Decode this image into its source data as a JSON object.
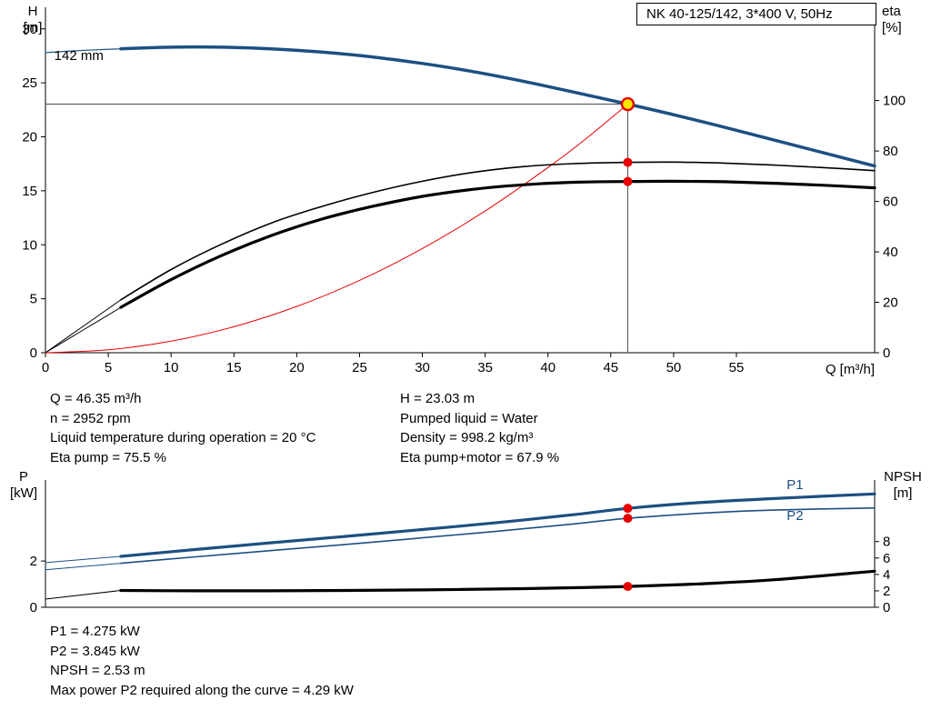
{
  "title_box": {
    "label": "NK 40-125/142, 3*400 V, 50Hz"
  },
  "colors": {
    "blue": "#1c4f82",
    "red": "#e60000",
    "yellow": "#ffe600",
    "black": "#000000",
    "gray": "#4d4d4d"
  },
  "axis_headers": {
    "h": [
      "H",
      "[m]"
    ],
    "eta": [
      "eta",
      "[%]"
    ],
    "p": [
      "P",
      "[kW]"
    ],
    "npsh": [
      "NPSH",
      "[m]"
    ]
  },
  "info_top": {
    "left": [
      "Q = 46.35 m³/h",
      "n = 2952 rpm",
      "Liquid temperature during operation = 20 °C",
      "Eta pump = 75.5 %"
    ],
    "right": [
      "H = 23.03 m",
      "Pumped liquid = Water",
      "Density = 998.2 kg/m³",
      "Eta pump+motor = 67.9 %"
    ]
  },
  "info_bottom": [
    "P1 = 4.275 kW",
    "P2 = 3.845 kW",
    "NPSH = 2.53 m",
    "Max power P2 required along the curve = 4.29 kW"
  ],
  "chart_data": [
    {
      "type": "line",
      "title": "NK 40-125/142, 3*400 V, 50Hz",
      "xlabel": "Q [m³/h]",
      "ylabel_left": "H [m]",
      "ylabel_right": "eta [%]",
      "xlim": [
        0,
        66
      ],
      "ylim_left": [
        0,
        32
      ],
      "ylim_right": [
        0,
        137
      ],
      "xticks": [
        0,
        5,
        10,
        15,
        20,
        25,
        30,
        35,
        40,
        45,
        50,
        55
      ],
      "yticks_left": [
        0,
        5,
        10,
        15,
        20,
        25,
        30
      ],
      "yticks_right": [
        0,
        20,
        40,
        60,
        80,
        100
      ],
      "impeller_label": "142 mm",
      "duty_point": {
        "Q": 46.35,
        "H": 23.03,
        "eta_pump": 75.5,
        "eta_pump_motor": 67.9,
        "n_rpm": 2952
      },
      "ref_lines": [
        {
          "type": "h",
          "axis": "left",
          "v": 23.03,
          "q0": 0,
          "q1": 46.35
        },
        {
          "type": "v",
          "axis": "left",
          "q": 46.35,
          "v0": 0,
          "v1": 23.03
        }
      ],
      "series": [
        {
          "name": "qh-142mm-lead",
          "axis": "left",
          "color": "blue",
          "width": 1.2,
          "points": [
            [
              0,
              27.8
            ],
            [
              2,
              27.95
            ],
            [
              4,
              28.06
            ],
            [
              6,
              28.15
            ]
          ]
        },
        {
          "name": "eta-pump-lead",
          "axis": "right",
          "color": "black",
          "width": 1,
          "points": [
            [
              0,
              0
            ],
            [
              3,
              10.5
            ],
            [
              6,
              21
            ]
          ]
        },
        {
          "name": "eta-pump-motor-lead",
          "axis": "right",
          "color": "black",
          "width": 1,
          "points": [
            [
              0,
              0
            ],
            [
              3,
              9
            ],
            [
              6,
              18
            ]
          ]
        },
        {
          "name": "affinity-curve",
          "axis": "left",
          "color": "red",
          "width": 1,
          "points": [
            [
              0,
              0
            ],
            [
              5,
              0.27
            ],
            [
              10,
              1.07
            ],
            [
              15,
              2.41
            ],
            [
              20,
              4.29
            ],
            [
              25,
              6.7
            ],
            [
              30,
              9.65
            ],
            [
              35,
              13.13
            ],
            [
              40,
              17.15
            ],
            [
              43,
              19.8
            ],
            [
              46.35,
              23.03
            ]
          ]
        },
        {
          "name": "eta-pump",
          "axis": "right",
          "color": "black",
          "width": 1.6,
          "points": [
            [
              6,
              21
            ],
            [
              10,
              33
            ],
            [
              14,
              43
            ],
            [
              18,
              51.5
            ],
            [
              22,
              58
            ],
            [
              26,
              63.5
            ],
            [
              30,
              68
            ],
            [
              34,
              71.5
            ],
            [
              38,
              73.8
            ],
            [
              42,
              75
            ],
            [
              46.35,
              75.5
            ],
            [
              50,
              75.6
            ],
            [
              54,
              75.2
            ],
            [
              58,
              74.4
            ],
            [
              62,
              73.4
            ],
            [
              66,
              72.2
            ]
          ]
        },
        {
          "name": "eta-pump-motor",
          "axis": "right",
          "color": "black",
          "width": 3.2,
          "points": [
            [
              6,
              18
            ],
            [
              10,
              29
            ],
            [
              14,
              38.5
            ],
            [
              18,
              46.5
            ],
            [
              22,
              53
            ],
            [
              26,
              58
            ],
            [
              30,
              62
            ],
            [
              34,
              64.8
            ],
            [
              38,
              66.6
            ],
            [
              42,
              67.6
            ],
            [
              46.35,
              67.9
            ],
            [
              50,
              68
            ],
            [
              54,
              67.8
            ],
            [
              58,
              67.2
            ],
            [
              62,
              66.4
            ],
            [
              66,
              65.4
            ]
          ]
        },
        {
          "name": "qh-142mm",
          "axis": "left",
          "color": "blue",
          "width": 3.5,
          "points": [
            [
              6,
              28.15
            ],
            [
              10,
              28.3
            ],
            [
              14,
              28.3
            ],
            [
              18,
              28.15
            ],
            [
              22,
              27.85
            ],
            [
              26,
              27.4
            ],
            [
              30,
              26.8
            ],
            [
              34,
              26.05
            ],
            [
              38,
              25.15
            ],
            [
              42,
              24.15
            ],
            [
              46.35,
              23.03
            ],
            [
              50,
              22.05
            ],
            [
              54,
              20.9
            ],
            [
              58,
              19.7
            ],
            [
              62,
              18.5
            ],
            [
              66,
              17.3
            ]
          ]
        }
      ],
      "annotations": [
        {
          "name": "impeller-diameter-label",
          "text": "142 mm",
          "axis": "left",
          "q": 0.7,
          "v": 27.1,
          "color": "black",
          "anchor": "start"
        }
      ],
      "markers": [
        {
          "name": "duty-point-marker",
          "style": "duty",
          "axis": "left",
          "q": 46.35,
          "v": 23.03
        },
        {
          "name": "eta-pump-marker",
          "style": "dot",
          "axis": "right",
          "q": 46.35,
          "v": 75.5
        },
        {
          "name": "eta-pump-motor-marker",
          "style": "dot",
          "axis": "right",
          "q": 46.35,
          "v": 67.9
        }
      ]
    },
    {
      "type": "line",
      "title": "",
      "xlabel": "",
      "ylabel_left": "P [kW]",
      "ylabel_right": "NPSH [m]",
      "xlim": [
        0,
        66
      ],
      "ylim_left": [
        0,
        5.5
      ],
      "ylim_right": [
        0,
        15.5
      ],
      "xticks": [],
      "yticks_left": [
        0,
        2
      ],
      "yticks_right": [
        0,
        2,
        4,
        6,
        8
      ],
      "duty_point": {
        "Q": 46.35,
        "P1": 4.275,
        "P2": 3.845,
        "NPSH": 2.53
      },
      "ref_lines": [],
      "series": [
        {
          "name": "p1-lead",
          "axis": "left",
          "color": "blue",
          "width": 1,
          "points": [
            [
              0,
              1.93
            ],
            [
              6,
              2.2
            ]
          ]
        },
        {
          "name": "p2-lead",
          "axis": "left",
          "color": "blue",
          "width": 1,
          "points": [
            [
              0,
              1.62
            ],
            [
              6,
              1.9
            ]
          ]
        },
        {
          "name": "npsh-lead",
          "axis": "right",
          "color": "black",
          "width": 1,
          "points": [
            [
              0,
              1.0
            ],
            [
              6,
              2.05
            ]
          ]
        },
        {
          "name": "npsh",
          "axis": "right",
          "color": "black",
          "width": 3.2,
          "points": [
            [
              6,
              2.05
            ],
            [
              12,
              2.0
            ],
            [
              18,
              2.0
            ],
            [
              24,
              2.05
            ],
            [
              30,
              2.12
            ],
            [
              36,
              2.22
            ],
            [
              42,
              2.38
            ],
            [
              46.35,
              2.53
            ],
            [
              52,
              2.85
            ],
            [
              58,
              3.35
            ],
            [
              66,
              4.4
            ]
          ]
        },
        {
          "name": "p2",
          "axis": "left",
          "color": "blue",
          "width": 1.6,
          "points": [
            [
              6,
              1.9
            ],
            [
              12,
              2.18
            ],
            [
              18,
              2.45
            ],
            [
              24,
              2.72
            ],
            [
              30,
              3.0
            ],
            [
              36,
              3.29
            ],
            [
              42,
              3.6
            ],
            [
              46.35,
              3.845
            ],
            [
              52,
              4.06
            ],
            [
              58,
              4.2
            ],
            [
              66,
              4.29
            ]
          ]
        },
        {
          "name": "p1",
          "axis": "left",
          "color": "blue",
          "width": 3.2,
          "points": [
            [
              6,
              2.2
            ],
            [
              12,
              2.5
            ],
            [
              18,
              2.79
            ],
            [
              24,
              3.07
            ],
            [
              30,
              3.36
            ],
            [
              36,
              3.66
            ],
            [
              42,
              4.0
            ],
            [
              46.35,
              4.275
            ],
            [
              52,
              4.52
            ],
            [
              58,
              4.7
            ],
            [
              66,
              4.9
            ]
          ]
        }
      ],
      "annotations": [
        {
          "name": "p1-curve-label",
          "text": "P1",
          "axis": "left",
          "q": 59,
          "v": 5.1,
          "color": "blue",
          "anchor": "start"
        },
        {
          "name": "p2-curve-label",
          "text": "P2",
          "axis": "left",
          "q": 59,
          "v": 3.77,
          "color": "blue",
          "anchor": "start"
        }
      ],
      "markers": [
        {
          "name": "p1-marker",
          "style": "dot",
          "axis": "left",
          "q": 46.35,
          "v": 4.275
        },
        {
          "name": "p2-marker",
          "style": "dot",
          "axis": "left",
          "q": 46.35,
          "v": 3.845
        },
        {
          "name": "npsh-marker",
          "style": "dot",
          "axis": "right",
          "q": 46.35,
          "v": 2.53
        }
      ]
    }
  ]
}
